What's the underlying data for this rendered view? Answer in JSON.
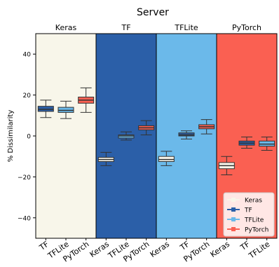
{
  "chart_data": {
    "type": "box",
    "title": "Server",
    "ylabel": "% Dissimilarity",
    "ylim": [
      -50,
      50
    ],
    "yticks": [
      40,
      20,
      0,
      -20,
      -40
    ],
    "grid": false,
    "legend_placement": "bottom-right",
    "colors": {
      "Keras": "#f8f5e9",
      "TF": "#2b5fa8",
      "TFLite": "#6bb9ea",
      "PyTorch": "#fa6052"
    },
    "panel_colors": [
      "#f8f6ea",
      "#2b5fa8",
      "#6bb9ea",
      "#fa6052"
    ],
    "legend": [
      "Keras",
      "TF",
      "TFLite",
      "PyTorch"
    ],
    "panels": [
      {
        "title": "Keras",
        "boxes": [
          {
            "label": "TF",
            "series": "TF",
            "whisker_low": 9,
            "q1": 12,
            "median": 13,
            "q3": 14.5,
            "whisker_high": 17.5
          },
          {
            "label": "TFLite",
            "series": "TFLite",
            "whisker_low": 8.5,
            "q1": 11.5,
            "median": 12.5,
            "q3": 14,
            "whisker_high": 17
          },
          {
            "label": "PyTorch",
            "series": "PyTorch",
            "whisker_low": 11.5,
            "q1": 16,
            "median": 17.5,
            "q3": 19,
            "whisker_high": 23.5
          }
        ]
      },
      {
        "title": "TF",
        "boxes": [
          {
            "label": "Keras",
            "series": "Keras",
            "whisker_low": -14.5,
            "q1": -12.5,
            "median": -11.5,
            "q3": -10.5,
            "whisker_high": -8
          },
          {
            "label": "TFLite",
            "series": "TFLite",
            "whisker_low": -2,
            "q1": -1,
            "median": 0,
            "q3": 0.5,
            "whisker_high": 2
          },
          {
            "label": "PyTorch",
            "series": "PyTorch",
            "whisker_low": 0.5,
            "q1": 3,
            "median": 4,
            "q3": 5,
            "whisker_high": 7.5
          }
        ]
      },
      {
        "title": "TFLite",
        "boxes": [
          {
            "label": "Keras",
            "series": "Keras",
            "whisker_low": -14.5,
            "q1": -12.5,
            "median": -11.5,
            "q3": -10,
            "whisker_high": -7.5
          },
          {
            "label": "TF",
            "series": "TF",
            "whisker_low": -1.5,
            "q1": 0,
            "median": 0.5,
            "q3": 1.5,
            "whisker_high": 2.5
          },
          {
            "label": "PyTorch",
            "series": "PyTorch",
            "whisker_low": 1,
            "q1": 3.5,
            "median": 4.5,
            "q3": 5.5,
            "whisker_high": 8
          }
        ]
      },
      {
        "title": "PyTorch",
        "boxes": [
          {
            "label": "Keras",
            "series": "Keras",
            "whisker_low": -19,
            "q1": -16,
            "median": -14.5,
            "q3": -13,
            "whisker_high": -10
          },
          {
            "label": "TF",
            "series": "TF",
            "whisker_low": -6,
            "q1": -4.5,
            "median": -3.5,
            "q3": -2.5,
            "whisker_high": -0.5
          },
          {
            "label": "TFLite",
            "series": "TFLite",
            "whisker_low": -7,
            "q1": -5,
            "median": -4,
            "q3": -2.5,
            "whisker_high": -0.5
          }
        ]
      }
    ]
  }
}
